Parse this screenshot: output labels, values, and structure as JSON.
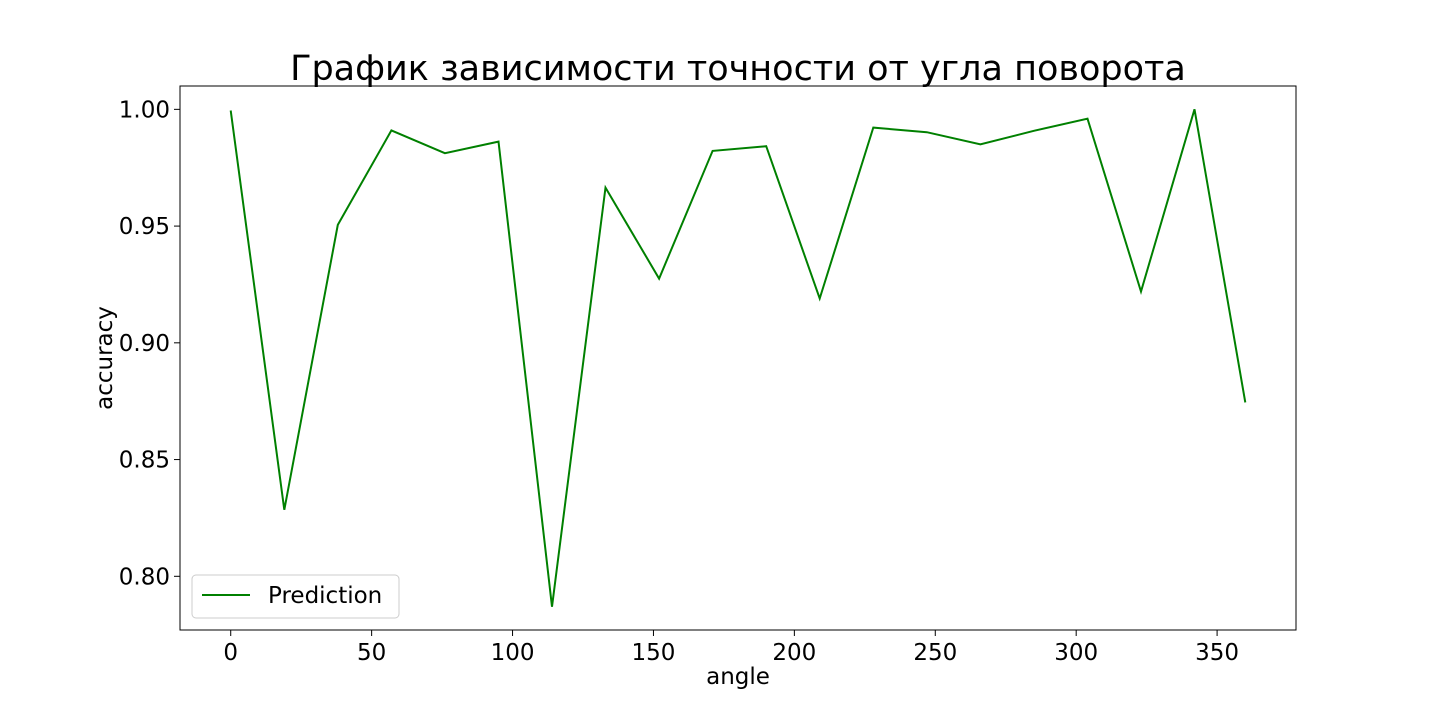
{
  "chart_data": {
    "type": "line",
    "title": "График зависимости точности от угла поворота",
    "xlabel": "angle",
    "ylabel": "accuracy",
    "xlim": [
      -18,
      378
    ],
    "ylim": [
      0.777,
      1.01
    ],
    "xticks": [
      0,
      50,
      100,
      150,
      200,
      250,
      300,
      350
    ],
    "yticks": [
      0.8,
      0.85,
      0.9,
      0.95,
      1.0
    ],
    "xtick_labels": [
      "0",
      "50",
      "100",
      "150",
      "200",
      "250",
      "300",
      "350"
    ],
    "ytick_labels": [
      "0.80",
      "0.85",
      "0.90",
      "0.95",
      "1.00"
    ],
    "grid": false,
    "legend_position": "lower-left",
    "series": [
      {
        "name": "Prediction",
        "color": "#008000",
        "x": [
          0,
          19,
          38,
          57,
          76,
          95,
          114,
          133,
          152,
          171,
          190,
          209,
          228,
          247,
          266,
          285,
          304,
          323,
          342,
          360
        ],
        "values": [
          0.9995,
          0.8285,
          0.9505,
          0.991,
          0.9812,
          0.9862,
          0.787,
          0.9665,
          0.9275,
          0.9822,
          0.9842,
          0.919,
          0.9922,
          0.9902,
          0.985,
          0.9908,
          0.996,
          0.922,
          1.0,
          0.8745
        ]
      }
    ]
  }
}
